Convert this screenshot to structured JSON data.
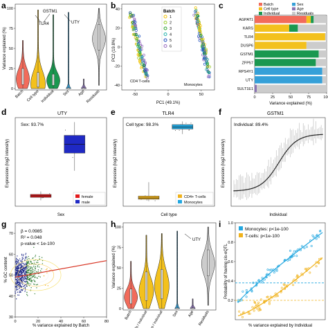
{
  "colors": {
    "batch": "#f26b5b",
    "cell_type": "#f3c11d",
    "individual": "#1a9850",
    "sex": "#35a0d8",
    "age": "#8a73b3",
    "residuals": "#cccccc",
    "female": "#e31a1c",
    "male": "#1f29c4",
    "cd4": "#f0b21c",
    "mono": "#22a7e0",
    "batch_pal": [
      "#f2c200",
      "#9acd32",
      "#2ca02c",
      "#20b2aa",
      "#1f4fbf",
      "#9467bd"
    ]
  },
  "chart_data": [
    {
      "id": "a",
      "panel_label": "a",
      "type": "violin",
      "ylabel": "Variance explained (%)",
      "yticks": [
        "0",
        "25",
        "50",
        "75",
        "100"
      ],
      "categories": [
        "Batch",
        "Cell type",
        "Individual",
        "Sex",
        "Age",
        "Residuals"
      ],
      "category_colors": [
        "#f26b5b",
        "#f3c11d",
        "#1a9850",
        "#35a0d8",
        "#8a73b3",
        "#cccccc"
      ],
      "annotations": [
        "GSTM1",
        "TLR4",
        "UTY"
      ],
      "ylim": [
        0,
        100
      ]
    },
    {
      "id": "b",
      "panel_label": "b",
      "type": "scatter",
      "xlabel": "PC1 (49.1%)",
      "ylabel": "PC2 (19.8%)",
      "xticks": [
        "-50",
        "0",
        "50"
      ],
      "yticks": [
        "-40",
        "-20",
        "0",
        "20",
        "40"
      ],
      "legend_title": "Batch",
      "legend_entries": [
        "1",
        "2",
        "3",
        "4",
        "5",
        "6"
      ],
      "annotations": [
        "CD4 T-cells",
        "Monocytes"
      ],
      "xlim": [
        -70,
        70
      ],
      "ylim": [
        -45,
        45
      ]
    },
    {
      "id": "c",
      "panel_label": "c",
      "type": "bar",
      "xlabel": "Variance explained (%)",
      "xticks": [
        "0",
        "25",
        "50",
        "75",
        "100"
      ],
      "legend_entries": [
        "Batch",
        "Cell type",
        "Individual",
        "Sex",
        "Age",
        "Residuals"
      ],
      "categories": [
        "AGPAT1",
        "KARS",
        "TLR4",
        "DUSP6",
        "GSTM1",
        "ZFP57",
        "RPS4Y1",
        "UTY",
        "SULT1E1"
      ],
      "series": [
        {
          "name": "Batch",
          "values": [
            72,
            0,
            0,
            0,
            0,
            0,
            0,
            0,
            0
          ]
        },
        {
          "name": "Cell type",
          "values": [
            6,
            48,
            98,
            72,
            0,
            0,
            0,
            0,
            0
          ]
        },
        {
          "name": "Individual",
          "values": [
            4,
            12,
            0,
            0,
            89,
            85,
            0,
            0,
            0
          ]
        },
        {
          "name": "Sex",
          "values": [
            0,
            0,
            0,
            0,
            0,
            0,
            94,
            94,
            0
          ]
        },
        {
          "name": "Age",
          "values": [
            0,
            0,
            0,
            0,
            0,
            0,
            0,
            0,
            3
          ]
        },
        {
          "name": "Residuals",
          "values": [
            18,
            40,
            2,
            28,
            11,
            15,
            6,
            6,
            97
          ]
        }
      ]
    },
    {
      "id": "d",
      "panel_label": "d",
      "type": "box",
      "title": "UTY",
      "annotation": "Sex: 93.7%",
      "xlabel": "Sex",
      "ylabel": "Expression (log2 intensity)",
      "categories": [
        "female",
        "male"
      ],
      "boxes": [
        {
          "q1": 5.1,
          "median": 5.2,
          "q3": 5.3,
          "wmin": 4.9,
          "wmax": 5.5
        },
        {
          "q1": 8.1,
          "median": 8.7,
          "q3": 9.3,
          "wmin": 6.9,
          "wmax": 10.2
        }
      ],
      "ylim": [
        4.5,
        10.5
      ]
    },
    {
      "id": "e",
      "panel_label": "e",
      "type": "box",
      "title": "TLR4",
      "annotation": "Cell type: 98.3%",
      "xlabel": "Cell type",
      "ylabel": "Expression (log2 intensity)",
      "categories": [
        "CD4+ T-cells",
        "Monocytes"
      ],
      "boxes": [
        {
          "q1": 5.05,
          "median": 5.15,
          "q3": 5.3,
          "wmin": 4.9,
          "wmax": 6.4
        },
        {
          "q1": 10.6,
          "median": 10.75,
          "q3": 10.95,
          "wmin": 10.2,
          "wmax": 11.2
        }
      ],
      "ylim": [
        4.5,
        11.5
      ]
    },
    {
      "id": "f",
      "panel_label": "f",
      "type": "line",
      "title": "GSTM1",
      "annotation": "Individual: 89.4%",
      "xlabel": "Individual",
      "ylabel": "Expression (log2 intensity)"
    },
    {
      "id": "g",
      "panel_label": "g",
      "type": "scatter",
      "xlabel": "% variance explained by Batch",
      "ylabel": "% GC content",
      "xticks": [
        "0",
        "20",
        "40",
        "60",
        "80"
      ],
      "yticks": [
        "30",
        "40",
        "50",
        "60",
        "70"
      ],
      "stats": [
        "β = 0.0985",
        "R² = 0.048",
        "p-value < 1e-100"
      ],
      "xlim": [
        0,
        80
      ],
      "ylim": [
        30,
        75
      ]
    },
    {
      "id": "h",
      "panel_label": "h",
      "type": "violin",
      "ylabel": "Variance explained (%)",
      "yticks": [
        "0",
        "25",
        "50",
        "75",
        "100"
      ],
      "categories": [
        "Batch",
        "T-cells / Individual",
        "Monocytes / Individual",
        "Sex",
        "Age",
        "Residuals"
      ],
      "category_colors": [
        "#f26b5b",
        "#f3c11d",
        "#f3c11d",
        "#35a0d8",
        "#8a73b3",
        "#cccccc"
      ],
      "annotations": [
        "UTY"
      ],
      "ylim": [
        0,
        100
      ]
    },
    {
      "id": "i",
      "panel_label": "i",
      "type": "scatter",
      "xlabel": "% variance explained by Individual",
      "ylabel": "Probability of having cis-eQTL",
      "yticks": [
        "0.2",
        "0.4",
        "0.6",
        "0.8",
        "1.0"
      ],
      "series": [
        {
          "name": "Monocytes: p<1e-100",
          "color": "#22a7e0"
        },
        {
          "name": "T-cells: p<1e-100",
          "color": "#f0b21c"
        }
      ],
      "ylim": [
        0,
        1
      ]
    }
  ]
}
